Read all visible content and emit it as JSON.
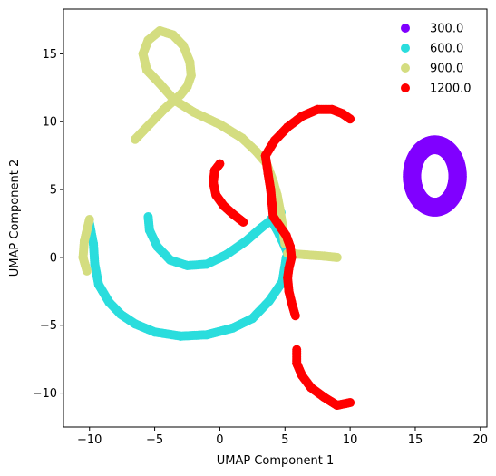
{
  "chart_data": {
    "type": "scatter",
    "xlabel": "UMAP Component 1",
    "ylabel": "UMAP Component 2",
    "xlim": [
      -12,
      20.5
    ],
    "ylim": [
      -12.5,
      18.3
    ],
    "xticks": [
      -10,
      -5,
      0,
      5,
      10,
      15,
      20
    ],
    "yticks": [
      -10,
      -5,
      0,
      5,
      10,
      15
    ],
    "grid": false,
    "legend_position": "top-right",
    "series": [
      {
        "name": "300.0",
        "color": "#8000ff",
        "shape": "ring",
        "center": [
          16.5,
          6.0
        ],
        "radius": [
          1.75,
          2.3
        ],
        "thickness": 0.9
      },
      {
        "name": "600.0",
        "color": "#2adddd",
        "strokes": [
          [
            [
              -10.0,
              2.5
            ],
            [
              -9.7,
              1.0
            ],
            [
              -9.6,
              -0.5
            ],
            [
              -9.3,
              -2.0
            ],
            [
              -8.5,
              -3.3
            ],
            [
              -7.6,
              -4.2
            ],
            [
              -6.5,
              -4.9
            ],
            [
              -5.0,
              -5.5
            ],
            [
              -3.0,
              -5.8
            ],
            [
              -1.0,
              -5.7
            ],
            [
              1.0,
              -5.2
            ],
            [
              2.5,
              -4.5
            ],
            [
              3.8,
              -3.2
            ],
            [
              4.8,
              -1.8
            ],
            [
              5.1,
              0.0
            ]
          ],
          [
            [
              -5.5,
              3.0
            ],
            [
              -5.4,
              2.0
            ],
            [
              -4.8,
              0.8
            ],
            [
              -3.8,
              -0.2
            ],
            [
              -2.5,
              -0.6
            ],
            [
              -1.0,
              -0.5
            ],
            [
              0.5,
              0.2
            ],
            [
              2.0,
              1.2
            ],
            [
              3.2,
              2.2
            ],
            [
              4.0,
              2.8
            ],
            [
              4.7,
              3.3
            ]
          ],
          [
            [
              3.9,
              2.8
            ],
            [
              4.4,
              2.0
            ],
            [
              4.9,
              1.0
            ],
            [
              5.2,
              0.3
            ]
          ]
        ]
      },
      {
        "name": "900.0",
        "color": "#d4dd80",
        "strokes": [
          [
            [
              -6.5,
              8.7
            ],
            [
              -5.4,
              9.8
            ],
            [
              -4.3,
              10.9
            ],
            [
              -3.6,
              11.5
            ],
            [
              -3.0,
              12.0
            ],
            [
              -2.5,
              12.6
            ],
            [
              -2.2,
              13.4
            ],
            [
              -2.3,
              14.4
            ],
            [
              -2.8,
              15.6
            ],
            [
              -3.6,
              16.4
            ],
            [
              -4.6,
              16.7
            ],
            [
              -5.5,
              16.0
            ],
            [
              -5.9,
              15.0
            ],
            [
              -5.6,
              13.8
            ],
            [
              -4.6,
              12.8
            ],
            [
              -3.5,
              11.6
            ],
            [
              -2.0,
              10.7
            ],
            [
              0.0,
              9.8
            ],
            [
              1.7,
              8.8
            ],
            [
              2.8,
              7.8
            ],
            [
              3.6,
              6.9
            ],
            [
              4.1,
              5.6
            ],
            [
              4.4,
              4.6
            ],
            [
              4.6,
              3.6
            ],
            [
              4.8,
              2.4
            ],
            [
              5.0,
              1.0
            ]
          ],
          [
            [
              -10.2,
              -1.0
            ],
            [
              -10.5,
              0.0
            ],
            [
              -10.4,
              1.2
            ],
            [
              -10.0,
              2.8
            ]
          ],
          [
            [
              5.2,
              0.3
            ],
            [
              6.5,
              0.2
            ],
            [
              8.0,
              0.1
            ],
            [
              9.0,
              0.0
            ]
          ]
        ]
      },
      {
        "name": "1200.0",
        "color": "#ff0000",
        "strokes": [
          [
            [
              3.5,
              7.5
            ],
            [
              4.2,
              8.6
            ],
            [
              5.2,
              9.6
            ],
            [
              6.3,
              10.4
            ],
            [
              7.5,
              10.9
            ],
            [
              8.6,
              10.9
            ],
            [
              9.4,
              10.6
            ],
            [
              10.0,
              10.2
            ]
          ],
          [
            [
              3.5,
              7.5
            ],
            [
              3.7,
              6.2
            ],
            [
              3.9,
              5.0
            ],
            [
              4.0,
              4.0
            ],
            [
              4.1,
              3.0
            ],
            [
              4.6,
              2.3
            ],
            [
              5.1,
              1.6
            ],
            [
              5.4,
              0.8
            ],
            [
              5.5,
              0.0
            ]
          ],
          [
            [
              5.5,
              0.0
            ],
            [
              5.3,
              -0.8
            ],
            [
              5.2,
              -1.5
            ],
            [
              5.3,
              -2.5
            ],
            [
              5.5,
              -3.3
            ],
            [
              5.8,
              -4.3
            ]
          ],
          [
            [
              0.0,
              6.9
            ],
            [
              -0.4,
              6.4
            ],
            [
              -0.5,
              5.5
            ],
            [
              -0.3,
              4.6
            ],
            [
              0.3,
              3.8
            ],
            [
              1.0,
              3.2
            ],
            [
              1.8,
              2.6
            ]
          ],
          [
            [
              5.9,
              -6.8
            ],
            [
              5.9,
              -7.8
            ],
            [
              6.3,
              -8.7
            ],
            [
              7.0,
              -9.6
            ],
            [
              8.0,
              -10.3
            ],
            [
              9.0,
              -10.9
            ],
            [
              10.0,
              -10.7
            ]
          ]
        ]
      }
    ]
  }
}
